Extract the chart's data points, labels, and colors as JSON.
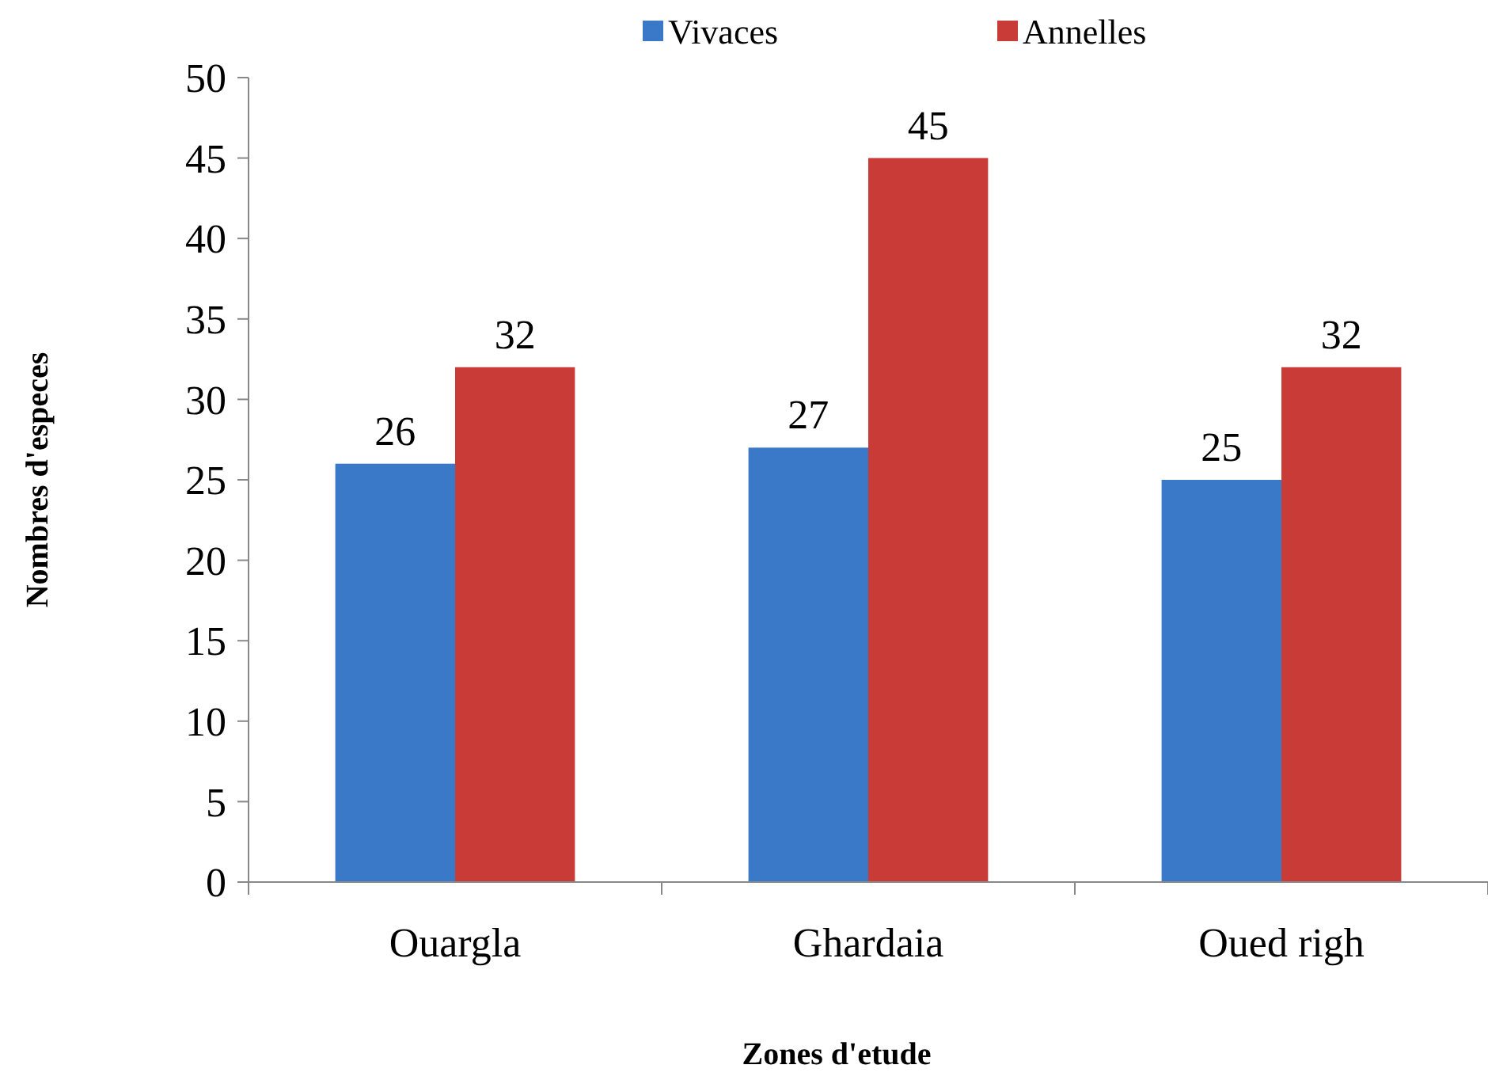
{
  "chart_data": {
    "type": "bar",
    "xlabel": "Zones d'etude",
    "ylabel": "Nombres d'especes",
    "categories": [
      "Ouargla",
      "Ghardaia",
      "Oued righ"
    ],
    "series": [
      {
        "name": "Vivaces",
        "color": "#3a78c8",
        "values": [
          26,
          27,
          25
        ]
      },
      {
        "name": "Annelles",
        "color": "#c83b37",
        "values": [
          32,
          45,
          32
        ]
      }
    ],
    "ylim": [
      0,
      50
    ],
    "yticks": [
      0,
      5,
      10,
      15,
      20,
      25,
      30,
      35,
      40,
      45,
      50
    ],
    "data_labels": true,
    "legend": "top",
    "grid": false
  }
}
